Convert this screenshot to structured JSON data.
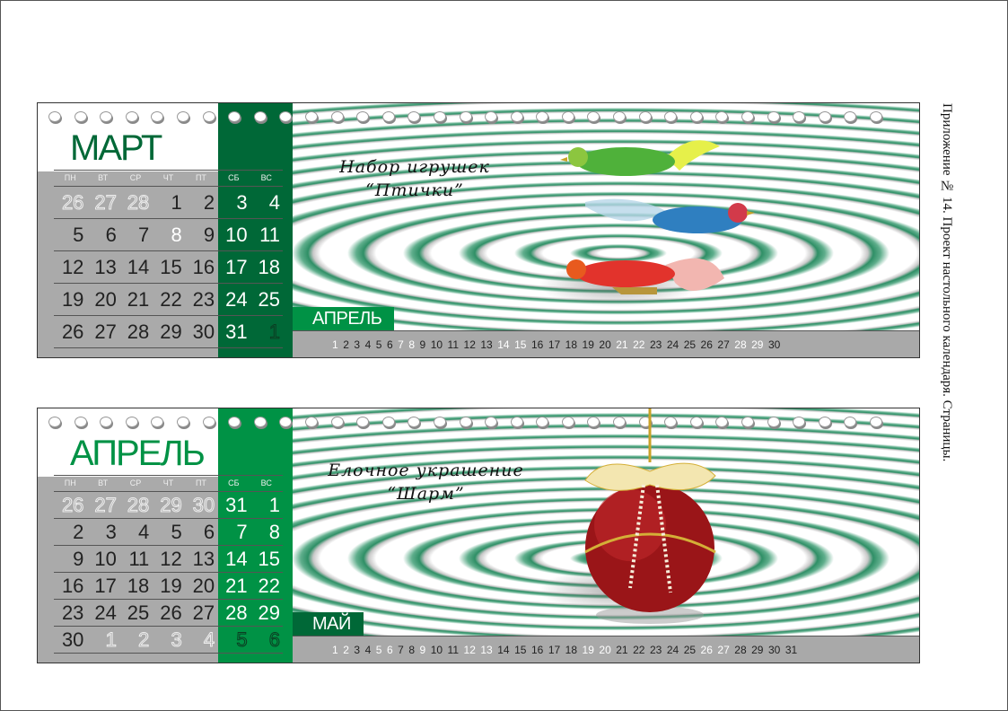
{
  "side_note": "Приложение № 14. Проект настольного календаря. Страницы.",
  "weekdays": [
    "ПН",
    "ВТ",
    "СР",
    "ЧТ",
    "ПТ",
    "СБ",
    "ВС"
  ],
  "cards": [
    {
      "month": "МАРТ",
      "green": "#006837",
      "caption": [
        "Набор игрушек",
        "“Птички”"
      ],
      "image": "glass-birds-ornaments",
      "weeks": [
        [
          [
            "26",
            "out"
          ],
          [
            "27",
            "out"
          ],
          [
            "28",
            "out"
          ],
          [
            "1",
            "n"
          ],
          [
            "2",
            "n"
          ],
          [
            "3",
            "wk"
          ],
          [
            "4",
            "wk"
          ]
        ],
        [
          [
            "5",
            "n"
          ],
          [
            "6",
            "n"
          ],
          [
            "7",
            "n"
          ],
          [
            "8",
            "hl"
          ],
          [
            "9",
            "n"
          ],
          [
            "10",
            "wk"
          ],
          [
            "11",
            "wk"
          ]
        ],
        [
          [
            "12",
            "n"
          ],
          [
            "13",
            "n"
          ],
          [
            "14",
            "n"
          ],
          [
            "15",
            "n"
          ],
          [
            "16",
            "n"
          ],
          [
            "17",
            "wk"
          ],
          [
            "18",
            "wk"
          ]
        ],
        [
          [
            "19",
            "n"
          ],
          [
            "20",
            "n"
          ],
          [
            "21",
            "n"
          ],
          [
            "22",
            "n"
          ],
          [
            "23",
            "n"
          ],
          [
            "24",
            "wk"
          ],
          [
            "25",
            "wk"
          ]
        ],
        [
          [
            "26",
            "n"
          ],
          [
            "27",
            "n"
          ],
          [
            "28",
            "n"
          ],
          [
            "29",
            "n"
          ],
          [
            "30",
            "n"
          ],
          [
            "31",
            "wk"
          ],
          [
            "1",
            "outd"
          ]
        ]
      ],
      "next_month": "АПРЕЛЬ",
      "next_green": "#009245",
      "next_days": [
        "1",
        "2",
        "3",
        "4",
        "5",
        "6",
        "7",
        "8",
        "9",
        "10",
        "11",
        "12",
        "13",
        "14",
        "15",
        "16",
        "17",
        "18",
        "19",
        "20",
        "21",
        "22",
        "23",
        "24",
        "25",
        "26",
        "27",
        "28",
        "29",
        "30"
      ],
      "next_white": [
        "1",
        "7",
        "8",
        "14",
        "15",
        "21",
        "22",
        "28",
        "29"
      ]
    },
    {
      "month": "АПРЕЛЬ",
      "green": "#009245",
      "caption": [
        "Елочное украшение",
        "“Шарм”"
      ],
      "image": "red-christmas-ball-ornament",
      "weeks": [
        [
          [
            "26",
            "out"
          ],
          [
            "27",
            "out"
          ],
          [
            "28",
            "out"
          ],
          [
            "29",
            "out"
          ],
          [
            "30",
            "out"
          ],
          [
            "31",
            "wk"
          ],
          [
            "1",
            "wk"
          ]
        ],
        [
          [
            "2",
            "n"
          ],
          [
            "3",
            "n"
          ],
          [
            "4",
            "n"
          ],
          [
            "5",
            "n"
          ],
          [
            "6",
            "n"
          ],
          [
            "7",
            "wk"
          ],
          [
            "8",
            "wk"
          ]
        ],
        [
          [
            "9",
            "n"
          ],
          [
            "10",
            "n"
          ],
          [
            "11",
            "n"
          ],
          [
            "12",
            "n"
          ],
          [
            "13",
            "n"
          ],
          [
            "14",
            "wk"
          ],
          [
            "15",
            "wk"
          ]
        ],
        [
          [
            "16",
            "n"
          ],
          [
            "17",
            "n"
          ],
          [
            "18",
            "n"
          ],
          [
            "19",
            "n"
          ],
          [
            "20",
            "n"
          ],
          [
            "21",
            "wk"
          ],
          [
            "22",
            "wk"
          ]
        ],
        [
          [
            "23",
            "n"
          ],
          [
            "24",
            "n"
          ],
          [
            "25",
            "n"
          ],
          [
            "26",
            "n"
          ],
          [
            "27",
            "n"
          ],
          [
            "28",
            "wk"
          ],
          [
            "29",
            "wk"
          ]
        ],
        [
          [
            "30",
            "n"
          ],
          [
            "1",
            "out"
          ],
          [
            "2",
            "out"
          ],
          [
            "3",
            "out"
          ],
          [
            "4",
            "out"
          ],
          [
            "5",
            "outd"
          ],
          [
            "6",
            "outd"
          ]
        ]
      ],
      "next_month": "МАЙ",
      "next_green": "#006837",
      "next_days": [
        "1",
        "2",
        "3",
        "4",
        "5",
        "6",
        "7",
        "8",
        "9",
        "10",
        "11",
        "12",
        "13",
        "14",
        "15",
        "16",
        "17",
        "18",
        "19",
        "20",
        "21",
        "22",
        "23",
        "24",
        "25",
        "26",
        "27",
        "28",
        "29",
        "30",
        "31"
      ],
      "next_white": [
        "1",
        "2",
        "5",
        "6",
        "9",
        "12",
        "13",
        "19",
        "20",
        "26",
        "27"
      ]
    }
  ]
}
